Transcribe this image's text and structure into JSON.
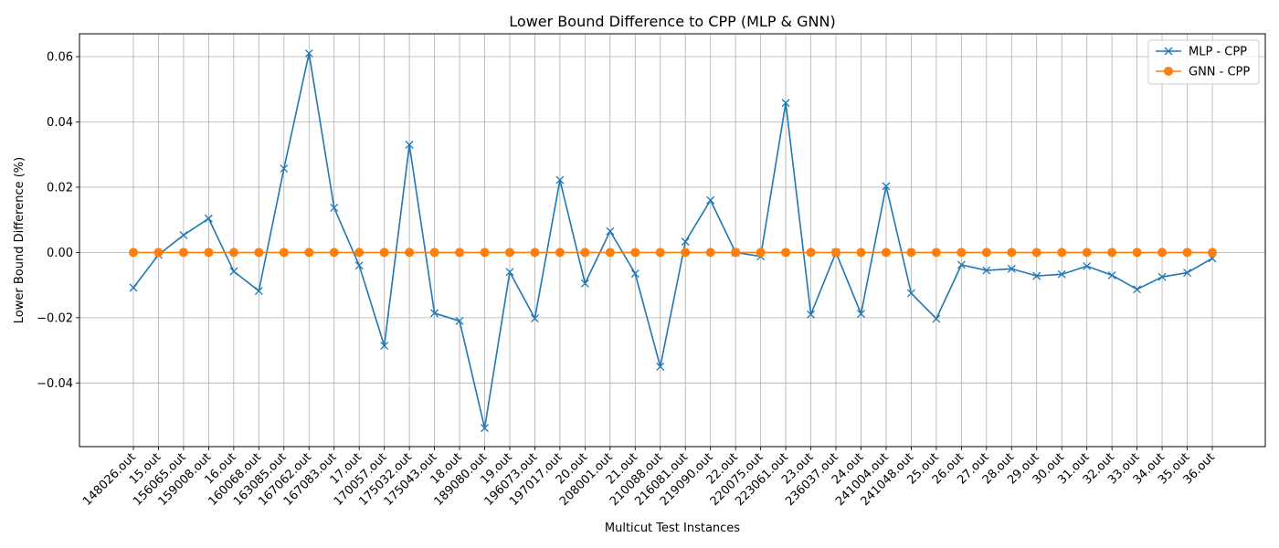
{
  "chart_data": {
    "type": "line",
    "title": "Lower Bound Difference to CPP (MLP & GNN)",
    "xlabel": "Multicut Test Instances",
    "ylabel": "Lower Bound Difference (%)",
    "ylim": [
      -0.0595,
      0.067
    ],
    "yticks": [
      -0.04,
      -0.02,
      0.0,
      0.02,
      0.04,
      0.06
    ],
    "ytick_labels": [
      "−0.04",
      "−0.02",
      "0.00",
      "0.02",
      "0.04",
      "0.06"
    ],
    "grid": true,
    "legend_position": "top-right",
    "categories": [
      "148026.out",
      "15.out",
      "156065.out",
      "159008.out",
      "16.out",
      "160068.out",
      "163085.out",
      "167062.out",
      "167083.out",
      "17.out",
      "170057.out",
      "175032.out",
      "175043.out",
      "18.out",
      "189080.out",
      "19.out",
      "196073.out",
      "197017.out",
      "20.out",
      "208001.out",
      "21.out",
      "210088.out",
      "216081.out",
      "219090.out",
      "22.out",
      "220075.out",
      "223061.out",
      "23.out",
      "236037.out",
      "24.out",
      "241004.out",
      "241048.out",
      "25.out",
      "26.out",
      "27.out",
      "28.out",
      "29.out",
      "30.out",
      "31.out",
      "32.out",
      "33.out",
      "34.out",
      "35.out",
      "36.out"
    ],
    "series": [
      {
        "name": "MLP - CPP",
        "color": "#1f77b4",
        "marker": "x",
        "values": [
          -0.0108,
          -0.0007,
          0.0053,
          0.0104,
          -0.0058,
          -0.0118,
          0.0257,
          0.061,
          0.0137,
          -0.004,
          -0.0286,
          0.033,
          -0.0186,
          -0.021,
          -0.0538,
          -0.006,
          -0.0202,
          0.0222,
          -0.0095,
          0.0065,
          -0.0065,
          -0.035,
          0.0033,
          0.016,
          0.0,
          -0.0012,
          0.0458,
          -0.019,
          0.0,
          -0.0188,
          0.0203,
          -0.0125,
          -0.0203,
          -0.0038,
          -0.0055,
          -0.005,
          -0.0072,
          -0.0067,
          -0.0042,
          -0.007,
          -0.0113,
          -0.0075,
          -0.0062,
          -0.0018
        ]
      },
      {
        "name": "GNN - CPP",
        "color": "#ff7f0e",
        "marker": "o",
        "values": [
          0,
          0,
          0,
          0,
          0,
          0,
          0,
          0,
          0,
          0,
          0,
          0,
          0,
          0,
          0,
          0,
          0,
          0,
          0,
          0,
          0,
          0,
          0,
          0,
          0,
          0,
          0,
          0,
          0,
          0,
          0,
          0,
          0,
          0,
          0,
          0,
          0,
          0,
          0,
          0,
          0,
          0,
          0,
          0
        ]
      }
    ]
  }
}
